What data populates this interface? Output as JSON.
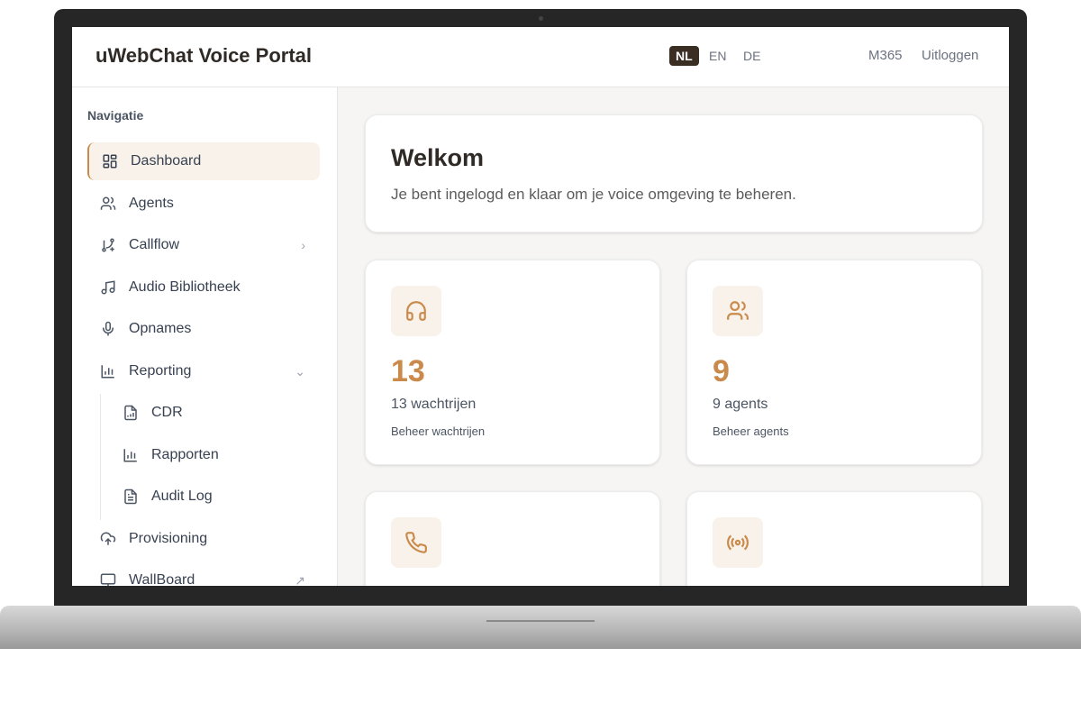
{
  "header": {
    "title": "uWebChat Voice Portal",
    "languages": [
      "NL",
      "EN",
      "DE"
    ],
    "active_language": "NL",
    "m365": "M365",
    "logout": "Uitloggen"
  },
  "sidebar": {
    "heading": "Navigatie",
    "items": [
      {
        "label": "Dashboard",
        "icon": "dashboard-icon"
      },
      {
        "label": "Agents",
        "icon": "users-icon"
      },
      {
        "label": "Callflow",
        "icon": "workflow-icon"
      },
      {
        "label": "Audio Bibliotheek",
        "icon": "music-icon"
      },
      {
        "label": "Opnames",
        "icon": "microphone-icon"
      },
      {
        "label": "Reporting",
        "icon": "bar-chart-icon"
      },
      {
        "label": "CDR",
        "icon": "file-chart-icon"
      },
      {
        "label": "Rapporten",
        "icon": "bar-chart-icon"
      },
      {
        "label": "Audit Log",
        "icon": "file-text-icon"
      },
      {
        "label": "Provisioning",
        "icon": "cloud-upload-icon"
      },
      {
        "label": "WallBoard",
        "icon": "monitor-icon"
      }
    ]
  },
  "welcome": {
    "title": "Welkom",
    "subtitle": "Je bent ingelogd en klaar om je voice omgeving te beheren."
  },
  "stats": [
    {
      "icon": "headphones-icon",
      "value": "13",
      "label": "13 wachtrijen",
      "link": "Beheer wachtrijen"
    },
    {
      "icon": "users-icon",
      "value": "9",
      "label": "9 agents",
      "link": "Beheer agents"
    },
    {
      "icon": "phone-icon"
    },
    {
      "icon": "broadcast-icon"
    }
  ],
  "colors": {
    "accent": "#c98a4b",
    "active_bg": "#f8f2ea",
    "dark": "#3a2d22"
  }
}
